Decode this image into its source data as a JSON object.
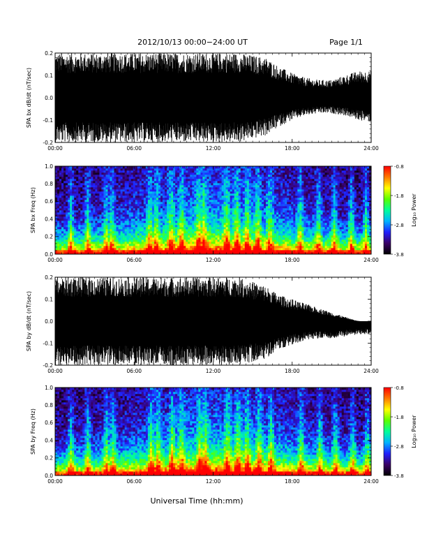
{
  "header": {
    "title": "2012/10/13  00:00−24:00 UT",
    "page": "Page 1/1"
  },
  "xlabel": "Universal Time (hh:mm)",
  "colorbar": {
    "label": "Log₁₀ Power",
    "ticks": [
      "-0.8",
      "-1.8",
      "-2.8",
      "-3.8"
    ],
    "range": [
      -3.8,
      -0.8
    ],
    "colors": [
      "#000000",
      "#3a0066",
      "#2020ff",
      "#00b4ff",
      "#00ff9a",
      "#5aff00",
      "#ffff00",
      "#ff7a00",
      "#ff0000"
    ]
  },
  "chart_data": [
    {
      "type": "area",
      "ylabel": "SPA bx dB/dt (nT/sec)",
      "xlim": [
        0,
        24
      ],
      "ylim": [
        -0.2,
        0.2
      ],
      "x_ticks": [
        "00:00",
        "06:00",
        "12:00",
        "18:00",
        "24:00"
      ],
      "y_ticks": [
        "0.2",
        "0.1",
        "0.0",
        "-0.1",
        "-0.2"
      ],
      "envelope": {
        "hours": [
          0,
          2,
          4,
          6,
          8,
          10,
          12,
          14,
          16,
          17,
          18,
          19,
          20,
          21,
          22,
          23,
          24
        ],
        "upper": [
          0.2,
          0.2,
          0.2,
          0.2,
          0.2,
          0.2,
          0.2,
          0.2,
          0.18,
          0.14,
          0.11,
          0.09,
          0.08,
          0.08,
          0.1,
          0.12,
          0.12
        ],
        "lower": [
          -0.2,
          -0.2,
          -0.2,
          -0.2,
          -0.2,
          -0.2,
          -0.2,
          -0.2,
          -0.17,
          -0.13,
          -0.1,
          -0.08,
          -0.07,
          -0.07,
          -0.08,
          -0.1,
          -0.11
        ]
      }
    },
    {
      "type": "heatmap",
      "ylabel": "SPA bx Freq (Hz)",
      "xlim": [
        0,
        24
      ],
      "ylim": [
        0,
        1.0
      ],
      "x_ticks": [
        "00:00",
        "06:00",
        "12:00",
        "18:00",
        "24:00"
      ],
      "y_ticks": [
        "1.0",
        "0.8",
        "0.6",
        "0.4",
        "0.2",
        "0.0"
      ],
      "value_range": [
        -3.8,
        -0.8
      ],
      "bursts_hours": [
        1.2,
        2.5,
        3.9,
        4.3,
        7.2,
        7.7,
        8.8,
        9.6,
        10.9,
        11.3,
        13.0,
        13.8,
        14.6,
        15.4,
        16.3,
        18.6,
        20.0,
        21.2,
        22.5,
        23.6
      ]
    },
    {
      "type": "area",
      "ylabel": "SPA by dB/dt (nT/sec)",
      "xlim": [
        0,
        24
      ],
      "ylim": [
        -0.2,
        0.2
      ],
      "x_ticks": [
        "00:00",
        "06:00",
        "12:00",
        "18:00",
        "24:00"
      ],
      "y_ticks": [
        "0.2",
        "0.1",
        "0.0",
        "-0.1",
        "-0.2"
      ],
      "envelope": {
        "hours": [
          0,
          2,
          4,
          6,
          8,
          10,
          12,
          14,
          16,
          17,
          18,
          19,
          20,
          21,
          22,
          23,
          24
        ],
        "upper": [
          0.2,
          0.2,
          0.2,
          0.2,
          0.2,
          0.2,
          0.2,
          0.2,
          0.16,
          0.12,
          0.1,
          0.08,
          0.06,
          0.04,
          0.02,
          0.0,
          0.0
        ],
        "lower": [
          -0.2,
          -0.2,
          -0.2,
          -0.2,
          -0.2,
          -0.2,
          -0.2,
          -0.2,
          -0.17,
          -0.13,
          -0.11,
          -0.09,
          -0.08,
          -0.08,
          -0.07,
          -0.06,
          -0.06
        ]
      }
    },
    {
      "type": "heatmap",
      "ylabel": "SPA by Freq (Hz)",
      "xlim": [
        0,
        24
      ],
      "ylim": [
        0,
        1.0
      ],
      "x_ticks": [
        "00:00",
        "06:00",
        "12:00",
        "18:00",
        "24:00"
      ],
      "y_ticks": [
        "1.0",
        "0.8",
        "0.6",
        "0.4",
        "0.2",
        "0.0"
      ],
      "value_range": [
        -3.8,
        -0.8
      ],
      "bursts_hours": [
        1.2,
        2.5,
        3.9,
        4.4,
        7.3,
        7.8,
        8.9,
        9.6,
        11.0,
        11.4,
        13.1,
        13.9,
        14.6,
        15.5,
        16.4,
        18.7,
        20.1,
        21.3,
        22.6,
        23.7
      ]
    }
  ]
}
